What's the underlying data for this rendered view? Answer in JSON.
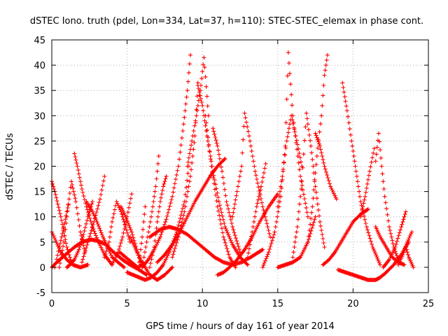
{
  "chart_data": {
    "type": "scatter",
    "title": "dSTEC Iono. truth (pdel, Lon=334, Lat=37, h=110): STEC-STEC_elemax in phase cont.",
    "xlabel": "GPS time / hours of day 161 of year 2014",
    "ylabel": "dSTEC  / TECUs",
    "xlim": [
      0,
      25
    ],
    "ylim": [
      -5,
      45
    ],
    "xticks": [
      "0",
      "5",
      "10",
      "15",
      "20",
      "25"
    ],
    "yticks": [
      "-5",
      "0",
      "5",
      "10",
      "15",
      "20",
      "25",
      "30",
      "35",
      "40",
      "45"
    ],
    "grid": true,
    "marker": "+",
    "color": "#ff0000",
    "series": [
      {
        "x": [
          0.0,
          0.4,
          0.9,
          1.5,
          2.0,
          2.6,
          3.1,
          3.6,
          4.1,
          4.7,
          5.2,
          5.8,
          6.3
        ],
        "values": [
          0.0,
          1.2,
          2.5,
          4.0,
          5.0,
          5.5,
          5.2,
          4.5,
          3.0,
          1.5,
          0.5,
          -0.5,
          -1.5
        ]
      },
      {
        "x": [
          0.0,
          0.2,
          0.4,
          0.6,
          0.8,
          1.0,
          1.3
        ],
        "values": [
          17.0,
          15.0,
          12.5,
          10.0,
          7.0,
          4.0,
          1.0
        ]
      },
      {
        "x": [
          0.0,
          0.3,
          0.6,
          1.0,
          1.4,
          1.9,
          2.4
        ],
        "values": [
          7.0,
          5.0,
          3.0,
          1.5,
          0.5,
          0.0,
          0.5
        ]
      },
      {
        "x": [
          0.2,
          0.5,
          0.8,
          1.1
        ],
        "values": [
          0.0,
          4.0,
          8.0,
          12.5
        ]
      },
      {
        "x": [
          0.5,
          0.8,
          1.0,
          1.3,
          1.6,
          1.9,
          2.2
        ],
        "values": [
          0.0,
          5.0,
          10.0,
          17.0,
          13.0,
          7.0,
          3.0
        ]
      },
      {
        "x": [
          1.0,
          1.2,
          1.5,
          1.8,
          2.1,
          2.4,
          2.7
        ],
        "values": [
          0.0,
          0.5,
          1.5,
          3.5,
          6.5,
          10.0,
          13.0
        ]
      },
      {
        "x": [
          1.5,
          1.7,
          2.0,
          2.3,
          2.7,
          3.1,
          3.5,
          4.0
        ],
        "values": [
          22.5,
          20.0,
          15.5,
          12.0,
          8.0,
          5.0,
          2.5,
          0.5
        ]
      },
      {
        "x": [
          2.0,
          2.4,
          2.8,
          3.2,
          3.5
        ],
        "values": [
          1.0,
          5.0,
          9.0,
          13.5,
          18.0
        ]
      },
      {
        "x": [
          2.3,
          2.7,
          3.0,
          3.4,
          3.7,
          4.0,
          4.4,
          4.8
        ],
        "values": [
          13.0,
          11.0,
          9.0,
          6.0,
          4.0,
          2.0,
          1.0,
          0.0
        ]
      },
      {
        "x": [
          3.5,
          3.8,
          4.0,
          4.3,
          4.6,
          4.9,
          5.2
        ],
        "values": [
          2.0,
          5.0,
          9.0,
          13.0,
          11.0,
          8.0,
          5.0
        ]
      },
      {
        "x": [
          4.0,
          4.4,
          4.7,
          5.0,
          5.3
        ],
        "values": [
          0.5,
          3.0,
          6.0,
          10.0,
          14.5
        ]
      },
      {
        "x": [
          4.5,
          4.9,
          5.3,
          5.7,
          6.0
        ],
        "values": [
          3.0,
          2.0,
          1.0,
          0.0,
          0.5
        ]
      },
      {
        "x": [
          4.6,
          4.9,
          5.3,
          5.7,
          6.0
        ],
        "values": [
          12.0,
          10.0,
          7.0,
          3.0,
          0.0
        ]
      },
      {
        "x": [
          5.2,
          5.5,
          5.8,
          6.1,
          6.5,
          7.0,
          7.5,
          8.0
        ],
        "values": [
          6.0,
          4.0,
          2.0,
          0.5,
          -1.5,
          -2.5,
          -1.5,
          0.0
        ]
      },
      {
        "x": [
          5.0,
          5.4,
          5.8,
          6.2,
          6.6,
          7.0,
          7.4,
          7.8,
          8.3,
          8.8,
          9.1
        ],
        "values": [
          -1.0,
          -1.5,
          -2.0,
          -2.5,
          -2.0,
          -1.0,
          0.5,
          3.0,
          7.0,
          13.0,
          20.0
        ]
      },
      {
        "x": [
          5.8,
          6.0,
          6.2
        ],
        "values": [
          1.0,
          6.0,
          12.0
        ]
      },
      {
        "x": [
          6.0,
          6.3,
          6.6,
          6.9,
          7.1
        ],
        "values": [
          0.0,
          5.0,
          10.0,
          16.0,
          22.0
        ]
      },
      {
        "x": [
          6.5,
          6.8,
          7.0,
          7.2,
          7.4,
          7.6
        ],
        "values": [
          0.0,
          4.0,
          9.0,
          13.0,
          16.0,
          18.0
        ]
      },
      {
        "x": [
          6.5,
          7.2,
          7.8,
          8.4,
          9.0,
          9.6,
          10.2,
          10.8,
          11.4,
          12.0,
          12.6,
          13.2,
          14.0
        ],
        "values": [
          6.0,
          7.5,
          8.0,
          7.5,
          6.5,
          5.0,
          3.5,
          2.0,
          1.0,
          0.5,
          1.0,
          2.0,
          3.5
        ]
      },
      {
        "x": [
          7.0,
          7.5,
          8.0,
          8.5,
          9.0,
          9.5,
          10.0,
          10.5,
          11.0,
          11.5
        ],
        "values": [
          1.0,
          2.5,
          4.5,
          7.0,
          10.0,
          13.0,
          15.5,
          18.0,
          20.0,
          21.5
        ]
      },
      {
        "x": [
          6.0,
          6.4,
          6.8,
          7.2,
          7.6,
          8.0,
          8.4,
          8.7,
          9.0,
          9.2
        ],
        "values": [
          0.0,
          1.5,
          3.5,
          6.0,
          9.5,
          14.0,
          20.0,
          27.0,
          35.0,
          42.0
        ]
      },
      {
        "x": [
          8.0,
          8.4,
          8.8,
          9.2,
          9.5,
          9.7
        ],
        "values": [
          2.0,
          6.0,
          11.0,
          18.0,
          26.0,
          36.5
        ]
      },
      {
        "x": [
          9.0,
          9.3,
          9.6,
          9.9,
          10.1,
          10.4
        ],
        "values": [
          20.0,
          25.0,
          30.0,
          36.0,
          41.5,
          30.0
        ]
      },
      {
        "x": [
          9.7,
          10.0,
          10.3,
          10.7,
          11.1,
          11.5,
          12.0,
          12.5,
          13.0
        ],
        "values": [
          36.0,
          32.0,
          26.0,
          19.0,
          13.0,
          8.0,
          4.5,
          2.0,
          0.5
        ]
      },
      {
        "x": [
          10.2,
          10.6,
          11.0,
          11.4,
          11.8,
          12.2
        ],
        "values": [
          30.0,
          20.0,
          12.0,
          6.0,
          2.0,
          0.0
        ]
      },
      {
        "x": [
          10.7,
          11.0,
          11.3,
          11.6,
          12.0,
          12.5
        ],
        "values": [
          27.5,
          24.0,
          19.0,
          13.0,
          8.0,
          3.0
        ]
      },
      {
        "x": [
          11.0,
          11.4,
          11.8,
          12.3,
          12.8,
          13.3,
          13.8,
          14.4,
          15.0
        ],
        "values": [
          -1.5,
          -1.0,
          0.0,
          1.5,
          3.5,
          6.0,
          9.0,
          12.0,
          14.5
        ]
      },
      {
        "x": [
          12.0,
          12.3,
          12.6,
          12.8,
          13.1,
          13.5,
          14.0,
          14.5
        ],
        "values": [
          10.0,
          15.0,
          20.0,
          30.5,
          26.0,
          19.0,
          12.0,
          6.0
        ]
      },
      {
        "x": [
          13.0,
          13.3,
          13.6,
          13.9,
          14.2
        ],
        "values": [
          2.0,
          7.0,
          12.0,
          16.0,
          20.5
        ]
      },
      {
        "x": [
          14.0,
          14.4,
          14.8,
          15.2,
          15.5,
          15.7,
          16.0,
          16.5,
          17.0
        ],
        "values": [
          0.0,
          3.0,
          7.0,
          14.0,
          24.0,
          42.5,
          30.0,
          18.0,
          10.0
        ]
      },
      {
        "x": [
          15.0,
          15.3,
          15.6,
          15.9,
          16.2,
          16.6
        ],
        "values": [
          12.0,
          18.0,
          25.0,
          30.0,
          26.0,
          20.0
        ]
      },
      {
        "x": [
          15.0,
          15.5,
          16.0,
          16.5,
          17.0,
          17.5
        ],
        "values": [
          0.0,
          0.5,
          1.0,
          2.0,
          5.0,
          10.0
        ]
      },
      {
        "x": [
          16.0,
          16.3,
          16.6,
          16.9,
          17.2,
          17.5,
          17.8,
          18.1
        ],
        "values": [
          2.0,
          8.0,
          17.0,
          30.5,
          24.0,
          16.0,
          9.0,
          4.0
        ]
      },
      {
        "x": [
          17.0,
          17.3,
          17.6,
          17.9,
          18.1,
          18.3
        ],
        "values": [
          5.0,
          12.0,
          22.0,
          30.0,
          38.0,
          42.0
        ]
      },
      {
        "x": [
          17.5,
          17.8,
          18.1,
          18.5,
          18.9
        ],
        "values": [
          26.5,
          24.0,
          20.0,
          16.0,
          13.5
        ]
      },
      {
        "x": [
          18.0,
          18.4,
          18.8,
          19.2,
          19.6,
          20.0,
          20.5,
          21.0
        ],
        "values": [
          0.5,
          1.5,
          3.0,
          5.0,
          7.0,
          9.0,
          10.5,
          11.5
        ]
      },
      {
        "x": [
          19.3,
          19.6,
          19.9,
          20.2,
          20.5,
          20.9,
          21.3,
          21.8
        ],
        "values": [
          36.5,
          31.0,
          25.0,
          19.0,
          13.0,
          8.0,
          4.0,
          0.5
        ]
      },
      {
        "x": [
          19.0,
          19.5,
          20.0,
          20.5,
          21.0,
          21.5,
          21.8,
          22.2,
          22.7,
          23.2,
          23.7
        ],
        "values": [
          -0.5,
          -1.0,
          -1.5,
          -2.0,
          -2.5,
          -2.5,
          -2.0,
          -1.0,
          0.5,
          2.5,
          5.0
        ]
      },
      {
        "x": [
          20.5,
          20.8,
          21.1,
          21.4
        ],
        "values": [
          10.0,
          14.0,
          19.0,
          23.5
        ]
      },
      {
        "x": [
          21.5,
          21.7,
          21.9,
          22.1,
          22.4,
          22.7,
          23.0
        ],
        "values": [
          21.0,
          26.5,
          20.0,
          14.0,
          8.0,
          4.0,
          1.5
        ]
      },
      {
        "x": [
          21.5,
          21.8,
          22.2,
          22.6,
          23.0,
          23.4
        ],
        "values": [
          8.0,
          6.0,
          4.0,
          2.0,
          1.0,
          0.5
        ]
      },
      {
        "x": [
          22.0,
          22.4,
          22.8,
          23.2,
          23.5
        ],
        "values": [
          0.0,
          1.5,
          4.0,
          8.0,
          11.0
        ]
      },
      {
        "x": [
          23.0,
          23.3,
          23.6,
          23.9
        ],
        "values": [
          0.5,
          2.5,
          5.0,
          7.0
        ]
      },
      {
        "x": [
          23.5,
          23.7,
          24.0
        ],
        "values": [
          4.0,
          2.0,
          0.0
        ]
      }
    ]
  }
}
